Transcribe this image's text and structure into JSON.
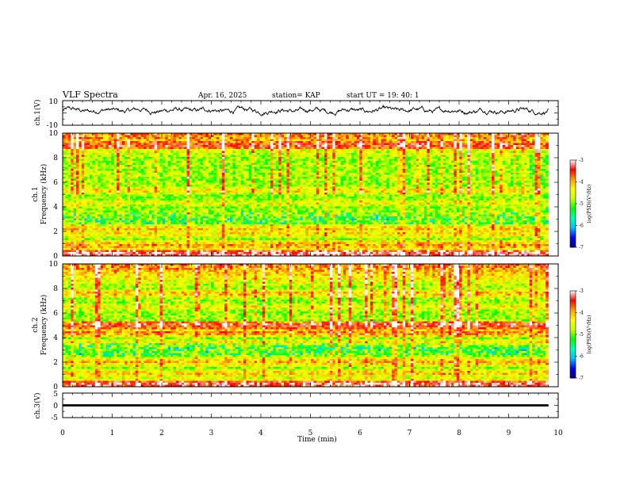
{
  "header": {
    "title": "VLF Spectra",
    "date": "Apr. 16, 2025",
    "station": "station= KAP",
    "start": "start  UT =   19: 40: 1"
  },
  "colors": {
    "trace": "#000000",
    "colormap": [
      "#000080",
      "#0000ff",
      "#00bfff",
      "#00ffb0",
      "#00ff00",
      "#c8ff00",
      "#ffff00",
      "#ffa000",
      "#ff0000",
      "#ffffff"
    ]
  },
  "chart_data": [
    {
      "type": "line",
      "panel": "ch1-waveform",
      "ylabel": "ch.1(V)",
      "ylim": [
        -10,
        10
      ],
      "yticks": [
        "10",
        "-10"
      ],
      "xlim": [
        0,
        10
      ],
      "mean": 2,
      "amplitude": 3,
      "x_end": 9.8
    },
    {
      "type": "heatmap",
      "panel": "ch1-spectrogram",
      "ylabel": "ch.1 Frequency (kHz)",
      "ylabel_lines": [
        "ch.1",
        "Frequency (kHz)"
      ],
      "ylim": [
        0,
        10
      ],
      "yticks": [
        "0",
        "2",
        "4",
        "6",
        "8",
        "10"
      ],
      "xlim": [
        0,
        10
      ],
      "x_end": 9.8,
      "colorbar": {
        "label": "log(PSD)(V²/Hz)",
        "range": [
          -7,
          -3
        ],
        "ticks": [
          "-3",
          "-4",
          "-5",
          "-6",
          "-7"
        ]
      },
      "bands_khz": [
        {
          "f": 0.2,
          "level": -3.2
        },
        {
          "f": 0.9,
          "level": -4.0
        },
        {
          "f": 1.8,
          "level": -4.3
        },
        {
          "f": 2.2,
          "level": -4.2
        },
        {
          "f": 3.4,
          "level": -4.6
        },
        {
          "f": 4.3,
          "level": -4.5
        },
        {
          "f": 5.3,
          "level": -4.4
        },
        {
          "f": 6.6,
          "level": -4.8
        },
        {
          "f": 9.0,
          "level": -3.6
        }
      ]
    },
    {
      "type": "heatmap",
      "panel": "ch2-spectrogram",
      "ylabel": "ch.2 Frequency (kHz)",
      "ylabel_lines": [
        "ch.2",
        "Frequency (kHz)"
      ],
      "ylim": [
        0,
        10
      ],
      "yticks": [
        "0",
        "2",
        "4",
        "6",
        "8",
        "10"
      ],
      "xlim": [
        0,
        10
      ],
      "x_end": 9.8,
      "colorbar": {
        "label": "log(PSD)(V²/Hz)",
        "range": [
          -7,
          -3
        ],
        "ticks": [
          "-3",
          "-4",
          "-5",
          "-6",
          "-7"
        ]
      },
      "bands_khz": [
        {
          "f": 0.2,
          "level": -3.3
        },
        {
          "f": 1.1,
          "level": -4.2
        },
        {
          "f": 2.0,
          "level": -4.1
        },
        {
          "f": 3.6,
          "level": -4.4
        },
        {
          "f": 4.4,
          "level": -3.9
        },
        {
          "f": 5.0,
          "level": -3.5
        },
        {
          "f": 6.5,
          "level": -4.5
        },
        {
          "f": 7.6,
          "level": -4.2
        }
      ]
    },
    {
      "type": "line",
      "panel": "ch3-waveform",
      "ylabel": "ch.3(V)",
      "ylim": [
        -5,
        5
      ],
      "yticks": [
        "5",
        "0",
        "-5"
      ],
      "xlim": [
        0,
        10
      ],
      "xticks": [
        "0",
        "1",
        "2",
        "3",
        "4",
        "5",
        "6",
        "7",
        "8",
        "9",
        "10"
      ],
      "xlabel": "Time (min)",
      "mean": 0,
      "amplitude": 0.4,
      "x_end": 9.8
    }
  ]
}
